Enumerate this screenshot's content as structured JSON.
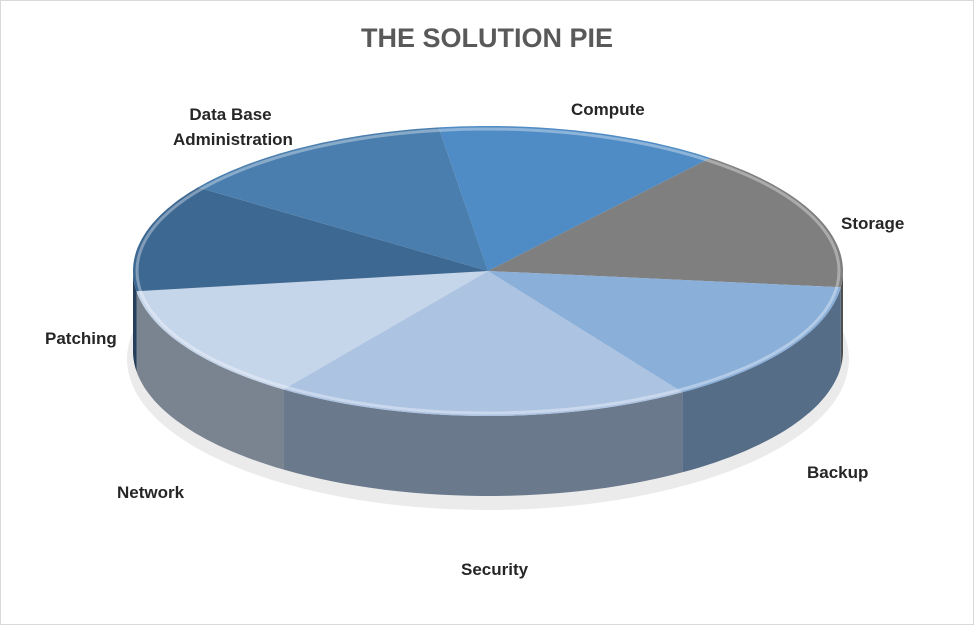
{
  "chart_data": {
    "type": "pie",
    "style": "3d",
    "title": "THE SOLUTION PIE",
    "slices": [
      {
        "label": "Compute",
        "value": 13,
        "color": "#4f8bc4"
      },
      {
        "label": "Storage",
        "value": 16,
        "color": "#7f7f7f"
      },
      {
        "label": "Backup",
        "value": 14,
        "color": "#8aafd9"
      },
      {
        "label": "Security",
        "value": 19,
        "color": "#adc3e2"
      },
      {
        "label": "Network",
        "value": 13,
        "color": "#c5d5ea"
      },
      {
        "label": "Patching",
        "value": 12,
        "color": "#3d6892"
      },
      {
        "label": "Data Base Administration",
        "value": 13,
        "color": "#4a7eae"
      }
    ],
    "legend": "none",
    "data_labels": "category names outside slices"
  }
}
